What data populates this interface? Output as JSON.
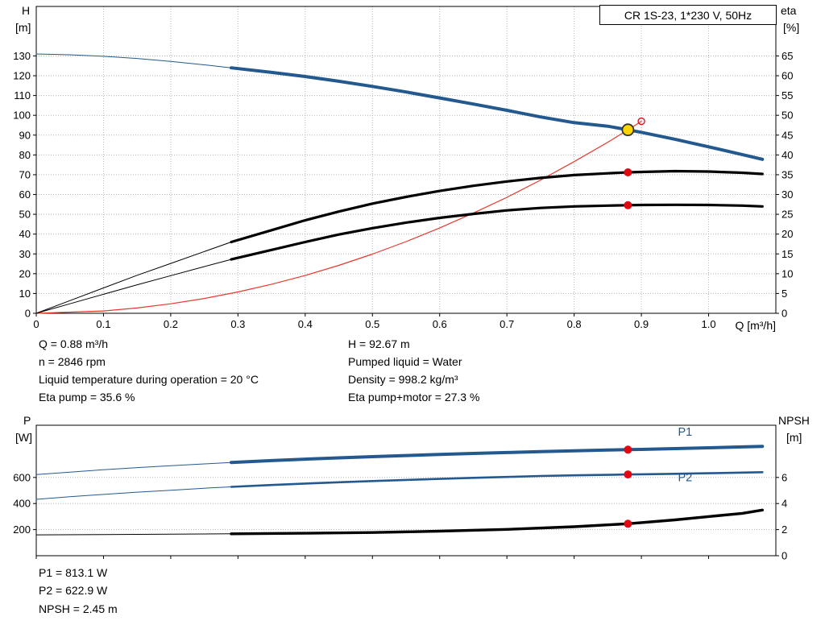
{
  "title_box": "CR 1S-23, 1*230 V, 50Hz",
  "colors": {
    "curve_blue": "#23598f",
    "curve_black": "#000000",
    "curve_red": "#e8382e",
    "marker_red": "#e30613",
    "marker_yellow": "#ffd500",
    "marker_ring": "#333333",
    "grid": "#b5b5b5",
    "axis": "#000000"
  },
  "chart_data": [
    {
      "id": "hq-eta",
      "type": "line",
      "title": "CR 1S-23, 1*230 V, 50Hz",
      "x_axis": {
        "min": 0,
        "max": 1.1,
        "label": "Q [m³/h]",
        "grid": true,
        "ticks": [
          0,
          0.1,
          0.2,
          0.3,
          0.4,
          0.5,
          0.6,
          0.7,
          0.8,
          0.9,
          1.0
        ],
        "tick_labels": [
          "0",
          "0.1",
          "0.2",
          "0.3",
          "0.4",
          "0.5",
          "0.6",
          "0.7",
          "0.8",
          "0.9",
          "1.0"
        ]
      },
      "y_left": {
        "label": "H",
        "unit": "[m]",
        "min": 0,
        "max": 155,
        "grid": true,
        "ticks": [
          0,
          10,
          20,
          30,
          40,
          50,
          60,
          70,
          80,
          90,
          100,
          110,
          120,
          130
        ],
        "tick_labels": [
          "0",
          "10",
          "20",
          "30",
          "40",
          "50",
          "60",
          "70",
          "80",
          "90",
          "100",
          "110",
          "120",
          "130"
        ]
      },
      "y_right": {
        "label": "eta",
        "unit": "[%]",
        "min": 0,
        "max": 77.5,
        "ticks": [
          0,
          5,
          10,
          15,
          20,
          25,
          30,
          35,
          40,
          45,
          50,
          55,
          60,
          65
        ],
        "tick_labels": [
          "0",
          "5",
          "10",
          "15",
          "20",
          "25",
          "30",
          "35",
          "40",
          "45",
          "50",
          "55",
          "60",
          "65"
        ]
      },
      "series": [
        {
          "id": "duty-parabola",
          "name": "Duty point parabola",
          "axis": "left",
          "color": "#e8382e",
          "thin_width": 1.2,
          "thin": [
            [
              0,
              0
            ],
            [
              0.1,
              1.2
            ],
            [
              0.15,
              2.7
            ],
            [
              0.2,
              4.8
            ],
            [
              0.25,
              7.5
            ],
            [
              0.3,
              10.8
            ],
            [
              0.35,
              14.7
            ],
            [
              0.4,
              19.1
            ],
            [
              0.45,
              24.2
            ],
            [
              0.5,
              29.9
            ],
            [
              0.55,
              36.2
            ],
            [
              0.6,
              43.1
            ],
            [
              0.65,
              50.6
            ],
            [
              0.7,
              58.6
            ],
            [
              0.75,
              67.3
            ],
            [
              0.8,
              76.6
            ],
            [
              0.85,
              86.4
            ],
            [
              0.88,
              92.67
            ],
            [
              0.9,
              97
            ]
          ]
        },
        {
          "id": "eta-total",
          "name": "Eta pump+motor",
          "axis": "right",
          "color": "#000000",
          "width": 3.2,
          "thin": [
            [
              0,
              0
            ],
            [
              0.05,
              2.4
            ],
            [
              0.1,
              4.8
            ],
            [
              0.15,
              7.2
            ],
            [
              0.2,
              9.5
            ],
            [
              0.25,
              11.8
            ],
            [
              0.29,
              13.6
            ]
          ],
          "thick": [
            [
              0.29,
              13.6
            ],
            [
              0.35,
              16
            ],
            [
              0.4,
              18
            ],
            [
              0.45,
              19.9
            ],
            [
              0.5,
              21.5
            ],
            [
              0.55,
              22.9
            ],
            [
              0.6,
              24.1
            ],
            [
              0.65,
              25.1
            ],
            [
              0.7,
              26
            ],
            [
              0.75,
              26.6
            ],
            [
              0.8,
              27
            ],
            [
              0.85,
              27.2
            ],
            [
              0.88,
              27.3
            ],
            [
              0.9,
              27.35
            ],
            [
              0.95,
              27.4
            ],
            [
              1.0,
              27.35
            ],
            [
              1.05,
              27.2
            ],
            [
              1.08,
              27
            ]
          ]
        },
        {
          "id": "eta-pump",
          "name": "Eta pump",
          "axis": "right",
          "color": "#000000",
          "width": 3.2,
          "thin": [
            [
              0,
              0
            ],
            [
              0.05,
              3.2
            ],
            [
              0.1,
              6.4
            ],
            [
              0.15,
              9.6
            ],
            [
              0.2,
              12.6
            ],
            [
              0.25,
              15.6
            ],
            [
              0.29,
              18
            ]
          ],
          "thick": [
            [
              0.29,
              18
            ],
            [
              0.35,
              21
            ],
            [
              0.4,
              23.5
            ],
            [
              0.45,
              25.7
            ],
            [
              0.5,
              27.7
            ],
            [
              0.55,
              29.4
            ],
            [
              0.6,
              30.9
            ],
            [
              0.65,
              32.2
            ],
            [
              0.7,
              33.3
            ],
            [
              0.75,
              34.2
            ],
            [
              0.8,
              34.9
            ],
            [
              0.85,
              35.35
            ],
            [
              0.88,
              35.6
            ],
            [
              0.9,
              35.7
            ],
            [
              0.95,
              35.9
            ],
            [
              1.0,
              35.8
            ],
            [
              1.05,
              35.5
            ],
            [
              1.08,
              35.2
            ]
          ]
        },
        {
          "id": "hq",
          "name": "H-Q curve",
          "axis": "left",
          "color": "#23598f",
          "width": 4,
          "thin": [
            [
              0,
              131
            ],
            [
              0.05,
              130.6
            ],
            [
              0.1,
              129.8
            ],
            [
              0.15,
              128.7
            ],
            [
              0.2,
              127.2
            ],
            [
              0.25,
              125.5
            ],
            [
              0.29,
              124
            ]
          ],
          "thick": [
            [
              0.29,
              124
            ],
            [
              0.35,
              121.7
            ],
            [
              0.4,
              119.6
            ],
            [
              0.45,
              117.2
            ],
            [
              0.5,
              114.6
            ],
            [
              0.55,
              111.8
            ],
            [
              0.6,
              108.8
            ],
            [
              0.65,
              105.7
            ],
            [
              0.7,
              102.5
            ],
            [
              0.75,
              99.2
            ],
            [
              0.8,
              96.3
            ],
            [
              0.85,
              94.5
            ],
            [
              0.88,
              92.67
            ],
            [
              0.9,
              91.4
            ],
            [
              0.95,
              87.9
            ],
            [
              1.0,
              84.1
            ],
            [
              1.05,
              80.2
            ],
            [
              1.08,
              77.8
            ]
          ]
        }
      ],
      "markers": [
        {
          "style": "duty",
          "x": 0.88,
          "v": 92.67,
          "axis": "left"
        },
        {
          "style": "open",
          "x": 0.9,
          "v": 97,
          "axis": "left"
        },
        {
          "style": "dot",
          "x": 0.88,
          "v": 35.6,
          "axis": "right"
        },
        {
          "style": "dot",
          "x": 0.88,
          "v": 27.3,
          "axis": "right"
        }
      ],
      "operating_point": {
        "Q": 0.88,
        "H": 92.67,
        "eta_pump": 35.6,
        "eta_pump_motor": 27.3
      }
    },
    {
      "id": "power-npsh",
      "type": "line",
      "x_axis": {
        "min": 0,
        "max": 1.1,
        "grid": false,
        "ticks": [
          0,
          0.1,
          0.2,
          0.3,
          0.4,
          0.5,
          0.6,
          0.7,
          0.8,
          0.9,
          1.0
        ]
      },
      "y_left": {
        "label": "P",
        "unit": "[W]",
        "min": 0,
        "max": 1000,
        "grid": true,
        "ticks": [
          200,
          400,
          600
        ],
        "tick_labels": [
          "200",
          "400",
          "600"
        ]
      },
      "y_right": {
        "label": "NPSH",
        "unit": "[m]",
        "min": 0,
        "max": 10,
        "ticks": [
          0,
          2,
          4,
          6
        ],
        "tick_labels": [
          "0",
          "2",
          "4",
          "6"
        ]
      },
      "series": [
        {
          "id": "p2",
          "name": "P2",
          "axis": "left",
          "color": "#23598f",
          "width": 2.6,
          "thin": [
            [
              0,
              432
            ],
            [
              0.05,
              452
            ],
            [
              0.1,
              470
            ],
            [
              0.15,
              487
            ],
            [
              0.2,
              502
            ],
            [
              0.25,
              517
            ],
            [
              0.29,
              528
            ]
          ],
          "thick": [
            [
              0.29,
              528
            ],
            [
              0.35,
              542
            ],
            [
              0.4,
              553
            ],
            [
              0.45,
              563
            ],
            [
              0.5,
              572
            ],
            [
              0.55,
              581
            ],
            [
              0.6,
              589
            ],
            [
              0.65,
              597
            ],
            [
              0.7,
              604
            ],
            [
              0.75,
              611
            ],
            [
              0.8,
              616
            ],
            [
              0.85,
              620
            ],
            [
              0.88,
              622.9
            ],
            [
              0.9,
              624
            ],
            [
              0.95,
              628
            ],
            [
              1.0,
              632
            ],
            [
              1.05,
              637
            ],
            [
              1.08,
              640
            ]
          ]
        },
        {
          "id": "p1",
          "name": "P1",
          "axis": "left",
          "color": "#23598f",
          "width": 4,
          "thin": [
            [
              0,
              622
            ],
            [
              0.05,
              641
            ],
            [
              0.1,
              659
            ],
            [
              0.15,
              675
            ],
            [
              0.2,
              690
            ],
            [
              0.25,
              704
            ],
            [
              0.29,
              715
            ]
          ],
          "thick": [
            [
              0.29,
              715
            ],
            [
              0.35,
              729
            ],
            [
              0.4,
              740
            ],
            [
              0.45,
              750
            ],
            [
              0.5,
              759
            ],
            [
              0.55,
              768
            ],
            [
              0.6,
              776
            ],
            [
              0.65,
              784
            ],
            [
              0.7,
              791
            ],
            [
              0.75,
              798
            ],
            [
              0.8,
              804
            ],
            [
              0.85,
              810
            ],
            [
              0.88,
              813.1
            ],
            [
              0.9,
              815
            ],
            [
              0.95,
              821
            ],
            [
              1.0,
              827
            ],
            [
              1.05,
              834
            ],
            [
              1.08,
              838
            ]
          ]
        },
        {
          "id": "npsh",
          "name": "NPSH",
          "axis": "right",
          "color": "#000000",
          "width": 3.4,
          "thin": [
            [
              0,
              1.6
            ],
            [
              0.1,
              1.62
            ],
            [
              0.2,
              1.65
            ],
            [
              0.29,
              1.68
            ]
          ],
          "thick": [
            [
              0.29,
              1.68
            ],
            [
              0.4,
              1.72
            ],
            [
              0.5,
              1.78
            ],
            [
              0.6,
              1.88
            ],
            [
              0.7,
              2.02
            ],
            [
              0.8,
              2.22
            ],
            [
              0.88,
              2.45
            ],
            [
              0.95,
              2.75
            ],
            [
              1.0,
              3.0
            ],
            [
              1.05,
              3.25
            ],
            [
              1.08,
              3.5
            ]
          ]
        }
      ],
      "series_labels": [
        {
          "text": "P1",
          "x": 0.965,
          "v": 920,
          "axis": "left"
        },
        {
          "text": "P2",
          "x": 0.965,
          "v": 570,
          "axis": "left"
        }
      ],
      "markers": [
        {
          "style": "dot",
          "x": 0.88,
          "v": 813.1,
          "axis": "left"
        },
        {
          "style": "dot",
          "x": 0.88,
          "v": 622.9,
          "axis": "left"
        },
        {
          "style": "dot",
          "x": 0.88,
          "v": 2.45,
          "axis": "right"
        }
      ],
      "values": {
        "P1_W": 813.1,
        "P2_W": 622.9,
        "NPSH_m": 2.45
      }
    }
  ],
  "annotations": {
    "left": [
      "Q = 0.88 m³/h",
      "n = 2846 rpm",
      "Liquid temperature during operation = 20 °C",
      "Eta pump = 35.6 %"
    ],
    "right": [
      "H = 92.67 m",
      "Pumped liquid = Water",
      "Density = 998.2 kg/m³",
      "Eta pump+motor = 27.3 %"
    ],
    "bottom": [
      "P1 = 813.1 W",
      "P2 = 622.9 W",
      "NPSH = 2.45 m"
    ]
  }
}
